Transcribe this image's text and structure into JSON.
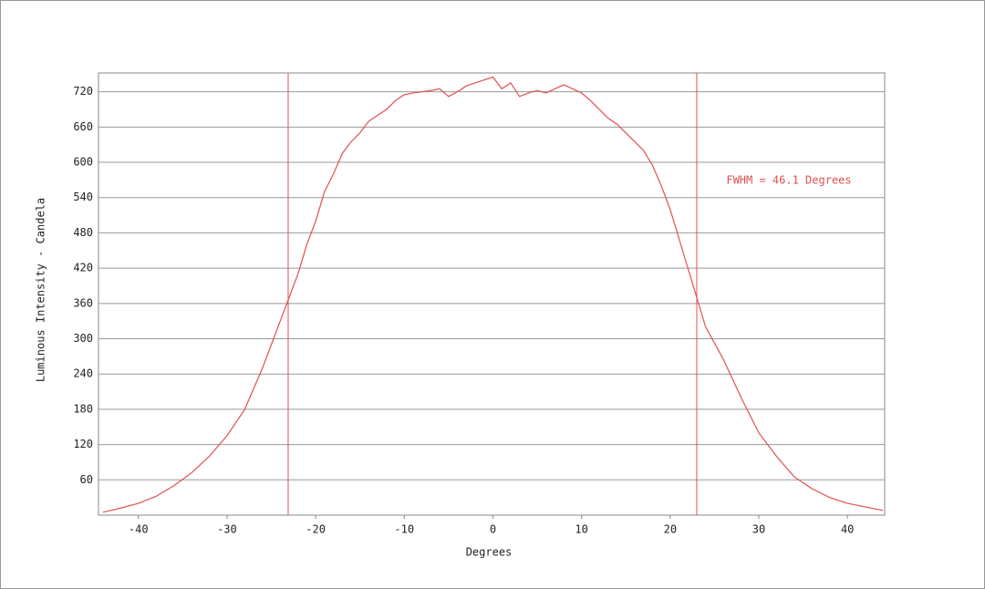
{
  "chart_data": {
    "type": "line",
    "x_label": "Degrees",
    "y_label": "Luminous Intensity - Candela",
    "annotation": "FWHM = 46.1 Degrees",
    "x": [
      -44,
      -42,
      -40,
      -38,
      -36,
      -34,
      -32,
      -30,
      -28,
      -26,
      -24,
      -23,
      -22,
      -21,
      -20,
      -19,
      -18,
      -17,
      -16,
      -15,
      -14,
      -13,
      -12,
      -11,
      -10,
      -9,
      -8,
      -7,
      -6,
      -5,
      -4,
      -3,
      -2,
      -1,
      0,
      1,
      2,
      3,
      4,
      5,
      6,
      7,
      8,
      9,
      10,
      11,
      12,
      13,
      14,
      15,
      16,
      17,
      18,
      19,
      20,
      21,
      22,
      23,
      24,
      26,
      28,
      30,
      32,
      34,
      36,
      38,
      40,
      42,
      44
    ],
    "series": [
      {
        "name": "Luminous Intensity",
        "color": "#e05050",
        "values": [
          5,
          12,
          20,
          32,
          50,
          72,
          100,
          135,
          180,
          250,
          330,
          370,
          410,
          460,
          500,
          550,
          580,
          615,
          635,
          650,
          670,
          680,
          690,
          705,
          715,
          718,
          720,
          722,
          725,
          712,
          720,
          730,
          735,
          740,
          745,
          725,
          735,
          712,
          718,
          722,
          718,
          725,
          732,
          725,
          718,
          705,
          690,
          675,
          665,
          650,
          635,
          620,
          595,
          560,
          520,
          470,
          420,
          370,
          320,
          265,
          200,
          140,
          100,
          65,
          45,
          30,
          20,
          14,
          8
        ]
      }
    ],
    "vlines": [
      -23.1,
      23.0
    ],
    "vline_color": "#e05050",
    "xlim": [
      -44.5,
      44.2
    ],
    "ylim": [
      0,
      752
    ],
    "xticks": [
      -40,
      -30,
      -20,
      -10,
      0,
      10,
      20,
      30,
      40
    ],
    "yticks": [
      60,
      120,
      180,
      240,
      300,
      360,
      420,
      480,
      540,
      600,
      660,
      720
    ],
    "grid": true
  }
}
